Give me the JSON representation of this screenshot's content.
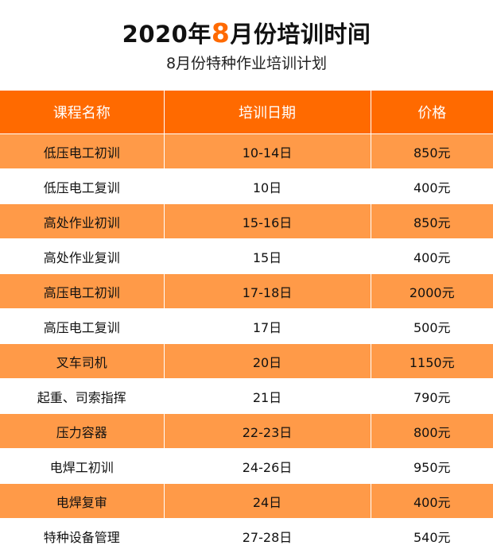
{
  "header": {
    "title_prefix": "2020年",
    "title_accent": "8",
    "title_suffix": "月份培训时间",
    "subtitle": "8月份特种作业培训计划"
  },
  "colors": {
    "accent": "#ff6a00",
    "row_highlight": "#ff9a48",
    "row_plain": "#ffffff"
  },
  "table": {
    "columns": [
      "课程名称",
      "培训日期",
      "价格"
    ],
    "rows": [
      [
        "低压电工初训",
        "10-14日",
        "850元"
      ],
      [
        "低压电工复训",
        "10日",
        "400元"
      ],
      [
        "高处作业初训",
        "15-16日",
        "850元"
      ],
      [
        "高处作业复训",
        "15日",
        "400元"
      ],
      [
        "高压电工初训",
        "17-18日",
        "2000元"
      ],
      [
        "高压电工复训",
        "17日",
        "500元"
      ],
      [
        "叉车司机",
        "20日",
        "1150元"
      ],
      [
        "起重、司索指挥",
        "21日",
        "790元"
      ],
      [
        "压力容器",
        "22-23日",
        "800元"
      ],
      [
        "电焊工初训",
        "24-26日",
        "950元"
      ],
      [
        "电焊复审",
        "24日",
        "400元"
      ],
      [
        "特种设备管理",
        "27-28日",
        "540元"
      ]
    ]
  }
}
